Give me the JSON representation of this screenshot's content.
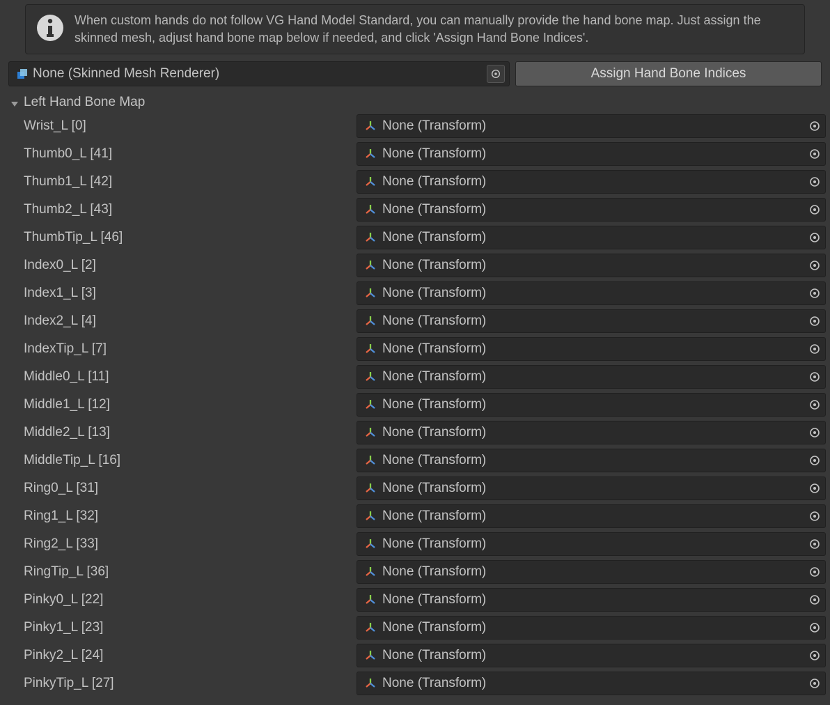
{
  "colors": {
    "background": "#383838",
    "panel": "#333333",
    "field_bg": "#2a2a2a",
    "button_bg": "#585858",
    "text": "#c3c3c3",
    "border": "#202020"
  },
  "help": {
    "text": "When custom hands do not follow VG Hand Model Standard, you can manually provide the hand bone map. Just assign the skinned mesh, adjust hand bone map below if needed, and click 'Assign Hand Bone Indices'."
  },
  "mesh_field": {
    "value": "None (Skinned Mesh Renderer)"
  },
  "assign_button": {
    "label": "Assign Hand Bone Indices"
  },
  "foldout": {
    "title": "Left Hand Bone Map"
  },
  "transform_none": "None (Transform)",
  "bones": [
    {
      "label": "Wrist_L [0]"
    },
    {
      "label": "Thumb0_L [41]"
    },
    {
      "label": "Thumb1_L [42]"
    },
    {
      "label": "Thumb2_L [43]"
    },
    {
      "label": "ThumbTip_L [46]"
    },
    {
      "label": "Index0_L [2]"
    },
    {
      "label": "Index1_L [3]"
    },
    {
      "label": "Index2_L [4]"
    },
    {
      "label": "IndexTip_L [7]"
    },
    {
      "label": "Middle0_L [11]"
    },
    {
      "label": "Middle1_L [12]"
    },
    {
      "label": "Middle2_L [13]"
    },
    {
      "label": "MiddleTip_L [16]"
    },
    {
      "label": "Ring0_L [31]"
    },
    {
      "label": "Ring1_L [32]"
    },
    {
      "label": "Ring2_L [33]"
    },
    {
      "label": "RingTip_L [36]"
    },
    {
      "label": "Pinky0_L [22]"
    },
    {
      "label": "Pinky1_L [23]"
    },
    {
      "label": "Pinky2_L [24]"
    },
    {
      "label": "PinkyTip_L [27]"
    }
  ]
}
